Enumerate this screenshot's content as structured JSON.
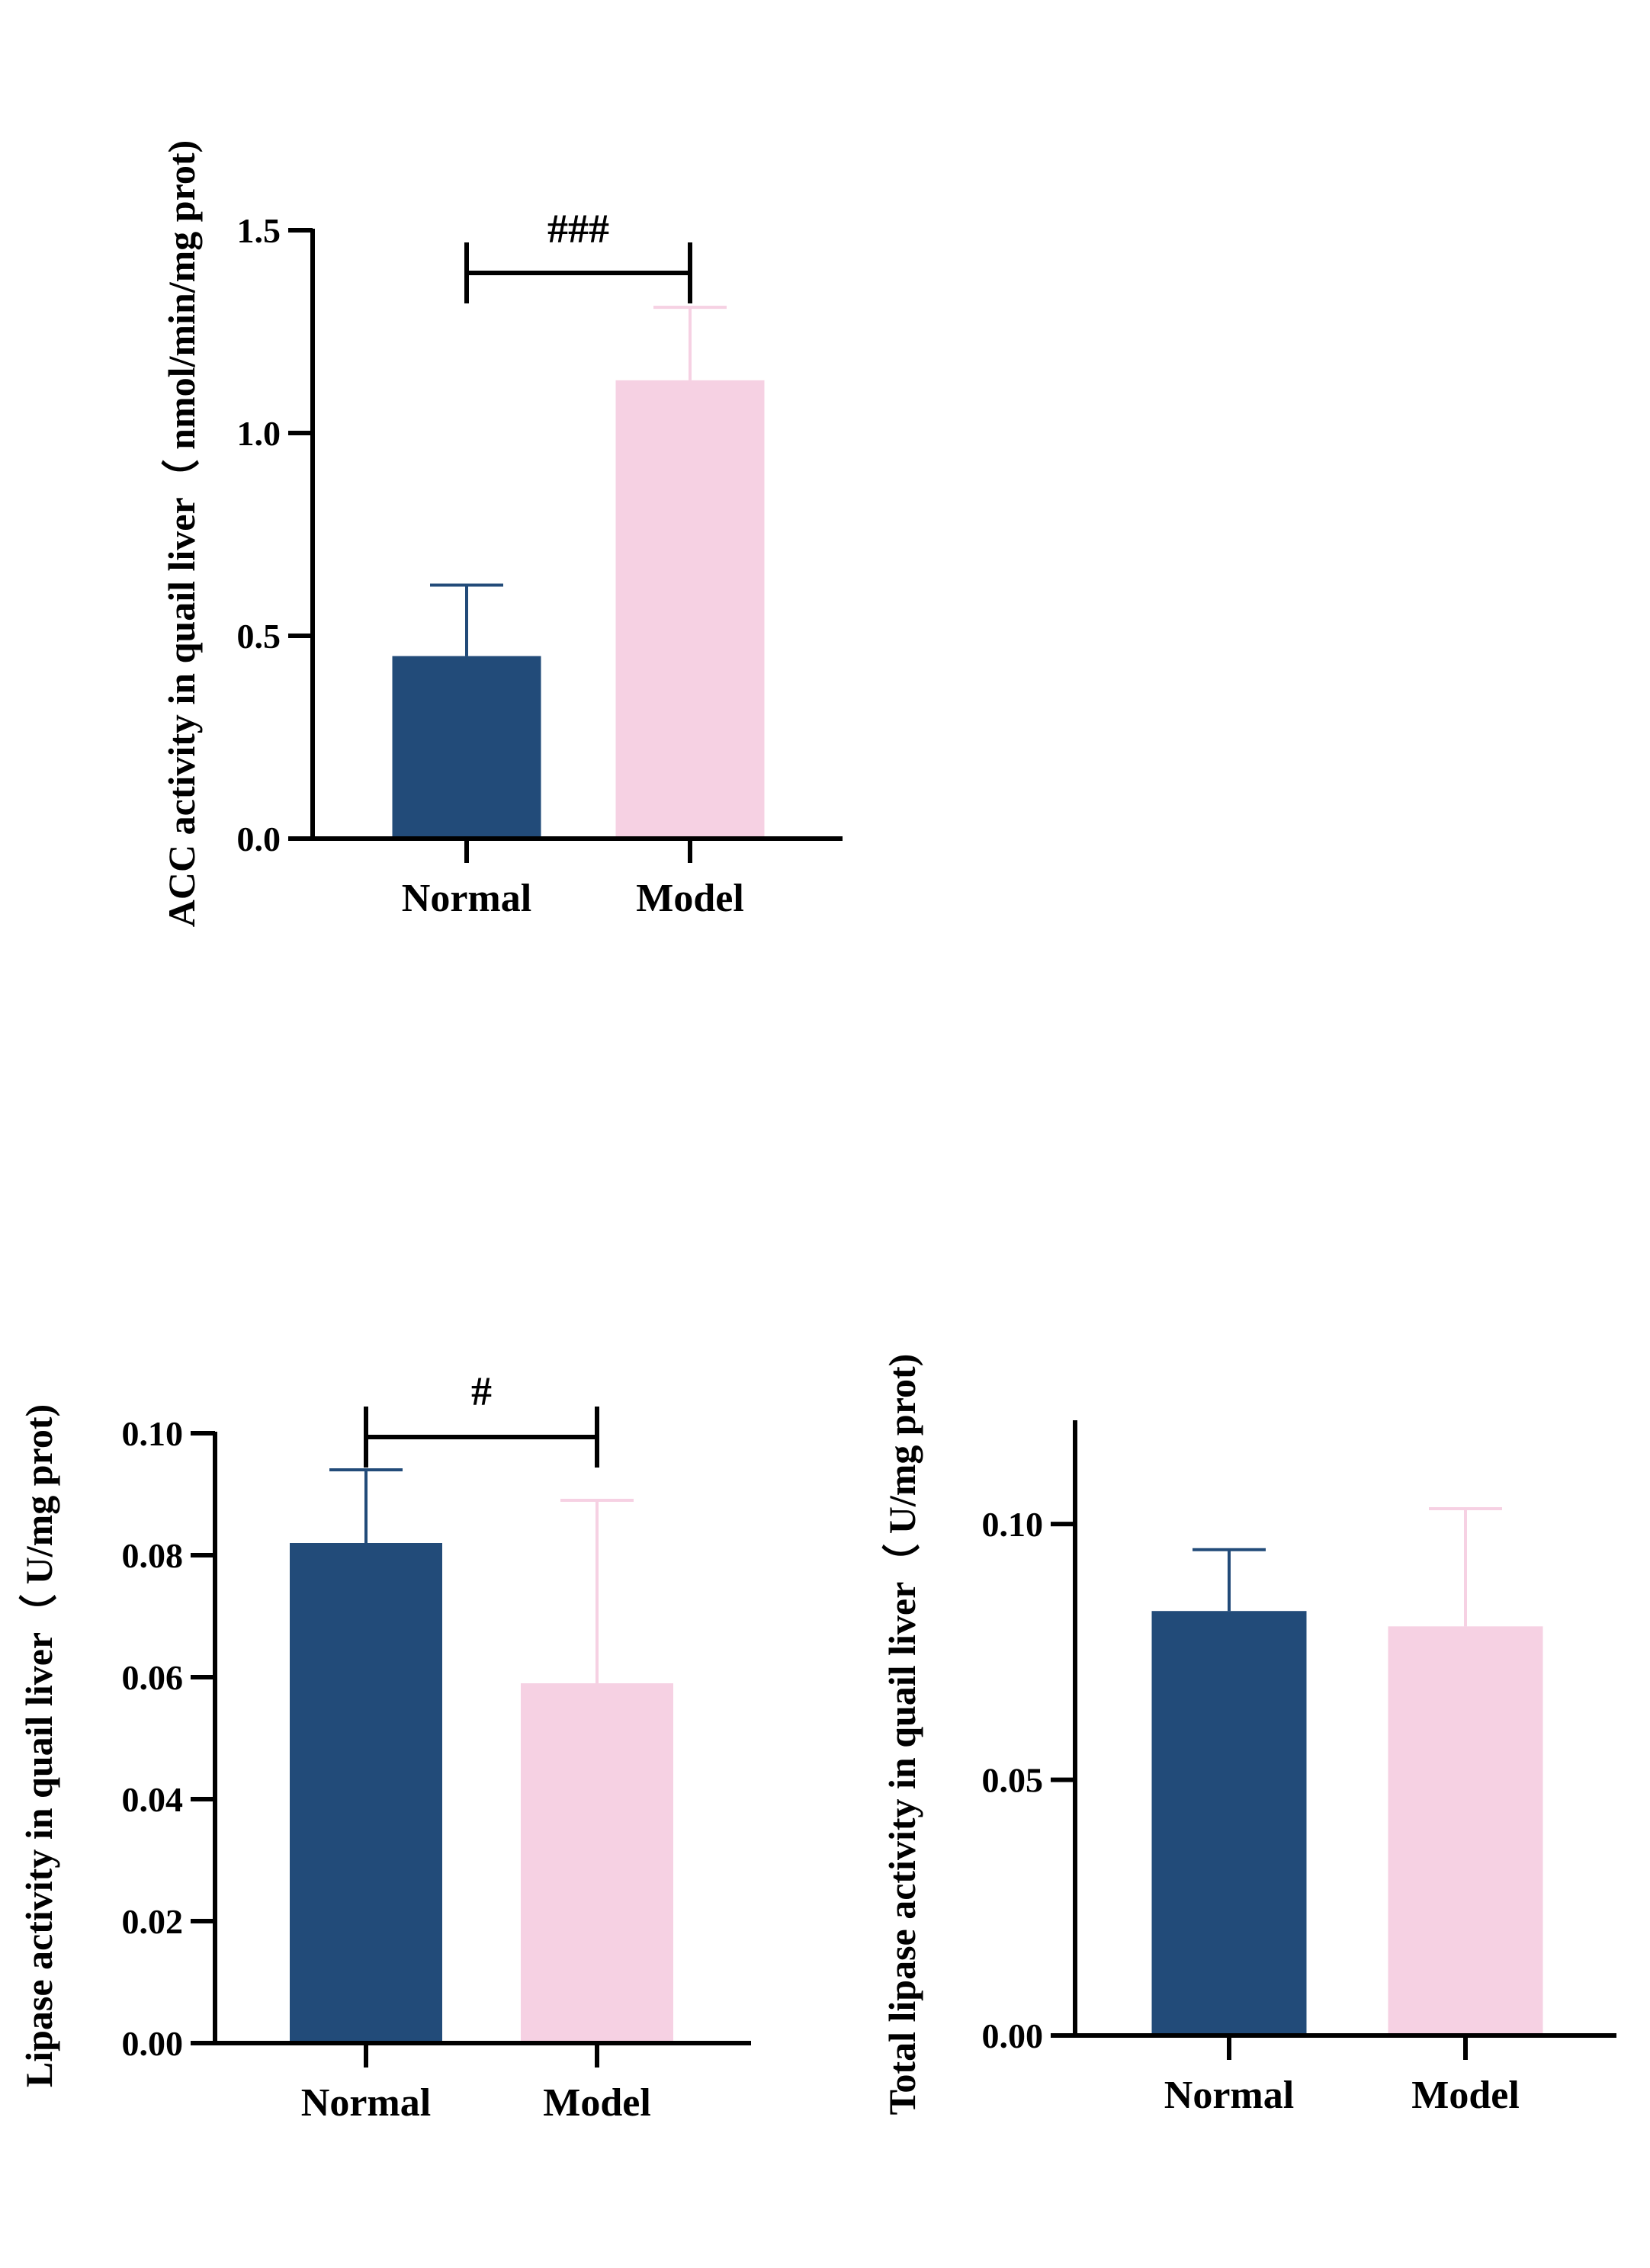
{
  "colors": {
    "normal": "#224b79",
    "model": "#f6d1e3",
    "normal_err": "#224b79",
    "model_err": "#f6d1e3",
    "axis": "#000000"
  },
  "chart_data": [
    {
      "type": "bar",
      "id": "acc",
      "ylabel": "ACC activity in quail liver（ nmol/min/mg prot)",
      "categories": [
        "Normal",
        "Model"
      ],
      "values": [
        0.45,
        1.13
      ],
      "errors": [
        0.175,
        0.18
      ],
      "ylim": [
        0,
        1.5
      ],
      "yticks": [
        0.0,
        0.5,
        1.0,
        1.5
      ],
      "ytick_labels": [
        "0.0",
        "0.5",
        "1.0",
        "1.5"
      ],
      "significance": {
        "label": "###",
        "between": [
          0,
          1
        ]
      }
    },
    {
      "type": "bar",
      "id": "lipase",
      "ylabel": "Lipase activity in quail  liver（ U/mg prot)",
      "categories": [
        "Normal",
        "Model"
      ],
      "values": [
        0.082,
        0.059
      ],
      "errors": [
        0.012,
        0.03
      ],
      "ylim": [
        0,
        0.1
      ],
      "yticks": [
        0.0,
        0.02,
        0.04,
        0.06,
        0.08,
        0.1
      ],
      "ytick_labels": [
        "0.00",
        "0.02",
        "0.04",
        "0.06",
        "0.08",
        "0.10"
      ],
      "significance": {
        "label": "#",
        "between": [
          0,
          1
        ]
      }
    },
    {
      "type": "bar",
      "id": "total-lipase",
      "ylabel": "Total lipase activity in quail liver（ U/mg prot)",
      "categories": [
        "Normal",
        "Model"
      ],
      "values": [
        0.083,
        0.08
      ],
      "errors": [
        0.012,
        0.023
      ],
      "ylim": [
        0,
        0.12
      ],
      "yticks": [
        0.0,
        0.05,
        0.1
      ],
      "ytick_labels": [
        "0.00",
        "0.05",
        "0.10"
      ],
      "significance": null
    }
  ]
}
